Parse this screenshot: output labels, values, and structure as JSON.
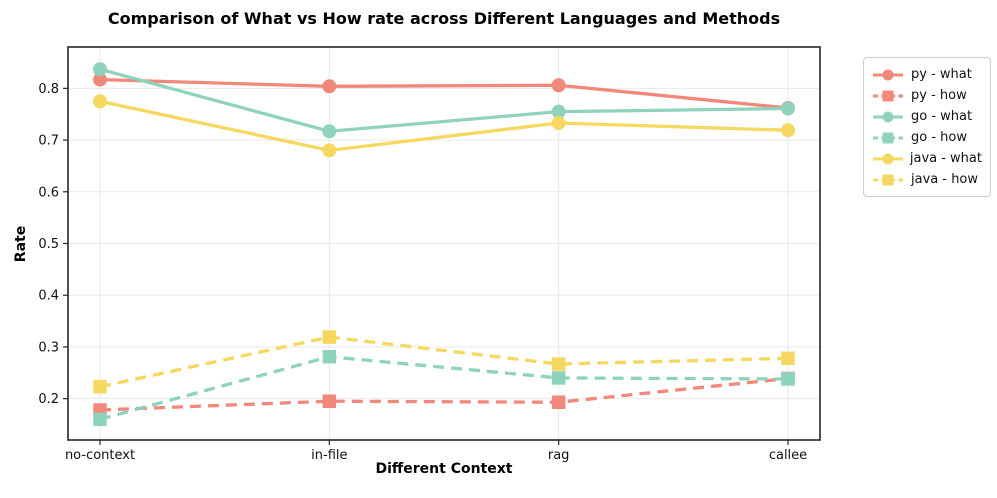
{
  "chart_data": {
    "type": "line",
    "title": "Comparison of What vs How rate across Different Languages and Methods",
    "xlabel": "Different Context",
    "ylabel": "Rate",
    "categories": [
      "no-context",
      "in-file",
      "rag",
      "callee"
    ],
    "y_ticks": [
      0.2,
      0.3,
      0.4,
      0.5,
      0.6,
      0.7,
      0.8
    ],
    "ylim": [
      0.12,
      0.88
    ],
    "grid": true,
    "legend_position": "outside-top-right",
    "colors": {
      "py": "#F0897C",
      "go": "#8FD2BE",
      "java": "#F6D860",
      "grid": "#e9e9e9",
      "spine": "#262626",
      "tick_text": "#111111"
    },
    "series": [
      {
        "name": "py - what",
        "color": "#F0897C",
        "line_style": "solid",
        "marker": "circle",
        "values": [
          0.817,
          0.804,
          0.806,
          0.762
        ]
      },
      {
        "name": "py - how",
        "color": "#F0897C",
        "line_style": "dashed",
        "marker": "square",
        "values": [
          0.178,
          0.195,
          0.193,
          0.239
        ]
      },
      {
        "name": "go - what",
        "color": "#8FD2BE",
        "line_style": "solid",
        "marker": "circle",
        "values": [
          0.837,
          0.717,
          0.755,
          0.761
        ]
      },
      {
        "name": "go - how",
        "color": "#8FD2BE",
        "line_style": "dashed",
        "marker": "square",
        "values": [
          0.16,
          0.281,
          0.24,
          0.238
        ]
      },
      {
        "name": "java - what",
        "color": "#F6D860",
        "line_style": "solid",
        "marker": "circle",
        "values": [
          0.775,
          0.68,
          0.733,
          0.719
        ]
      },
      {
        "name": "java - how",
        "color": "#F6D860",
        "line_style": "dashed",
        "marker": "square",
        "values": [
          0.223,
          0.319,
          0.267,
          0.278
        ]
      }
    ]
  }
}
